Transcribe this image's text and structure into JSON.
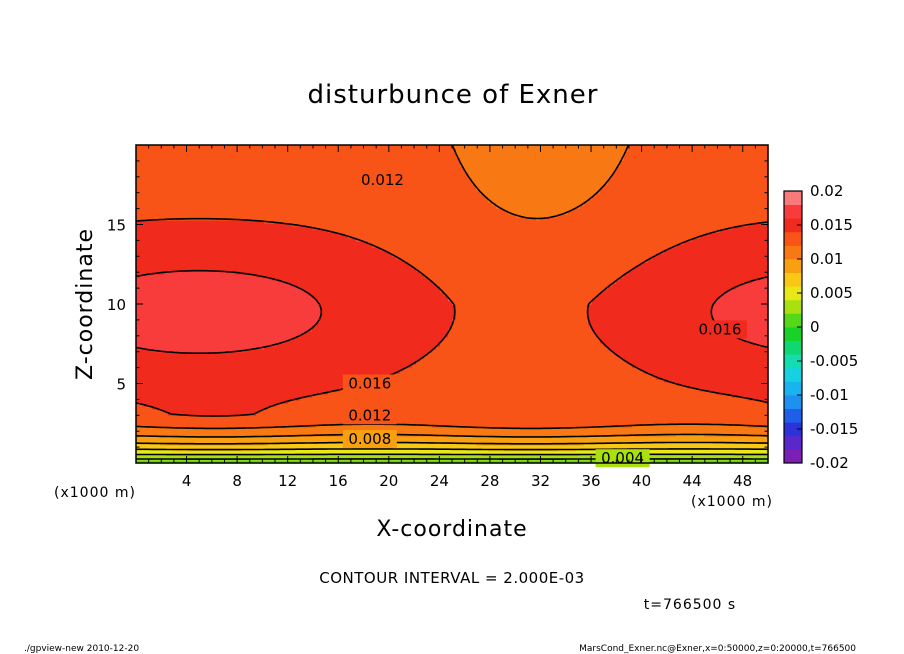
{
  "chart_data": {
    "type": "contour",
    "title": "disturbunce of Exner",
    "xlabel": "X-coordinate",
    "ylabel": "Z-coordinate",
    "x_unit": "(x1000 m)",
    "y_unit": "(x1000 m)",
    "xlim": [
      0,
      50
    ],
    "ylim": [
      0,
      20
    ],
    "x_ticks": [
      4,
      8,
      12,
      16,
      20,
      24,
      28,
      32,
      36,
      40,
      44,
      48
    ],
    "y_ticks": [
      5,
      10,
      15
    ],
    "contour_interval_text": "CONTOUR INTERVAL = 2.000E-03",
    "time_text": "t=766500 s",
    "colorbar": {
      "tick_labels": [
        "0.02",
        "0.015",
        "0.01",
        "0.005",
        "0",
        "-0.005",
        "-0.01",
        "-0.015",
        "-0.02"
      ],
      "min": -0.02,
      "max": 0.02,
      "colors": [
        "#7b1fb5",
        "#5a28c8",
        "#2b32d8",
        "#1f5fe8",
        "#1e90f0",
        "#19b4f0",
        "#16d2e0",
        "#12dcb0",
        "#10d870",
        "#18d228",
        "#54d818",
        "#a8e010",
        "#e8e818",
        "#f8c814",
        "#f8a010",
        "#f87814",
        "#f85418",
        "#f02a1c",
        "#f83c3c",
        "#f87a7a"
      ]
    },
    "contour_labels": [
      {
        "text": "0.012",
        "x": 19.5,
        "z": 17.8
      },
      {
        "text": "0.016",
        "x": 18.5,
        "z": 5.0
      },
      {
        "text": "0.012",
        "x": 18.5,
        "z": 3.0
      },
      {
        "text": "0.008",
        "x": 18.5,
        "z": 1.5
      },
      {
        "text": "0.004",
        "x": 38.5,
        "z": 0.3
      },
      {
        "text": "0.016",
        "x": 46.2,
        "z": 8.4
      }
    ],
    "footer_left": "./gpview-new   2010-12-20",
    "footer_right": "MarsCond_Exner.nc@Exner,x=0:50000,z=0:20000,t=766500"
  }
}
